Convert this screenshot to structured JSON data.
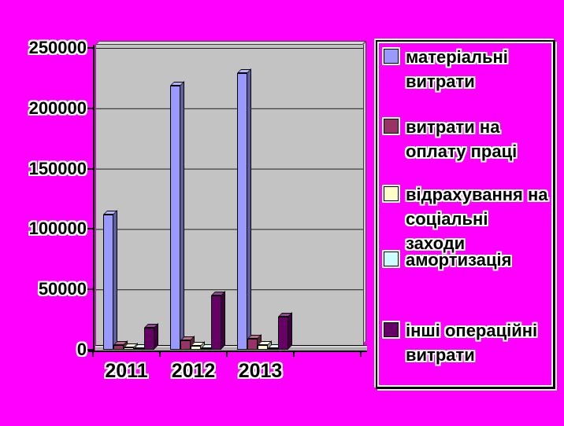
{
  "background_color": "#FF00FF",
  "plot": {
    "wall_color": "#C3C3C3",
    "floor_color": "#ACACAC",
    "grid_color": "#1e1e1e"
  },
  "chart_data": {
    "type": "bar",
    "subtype": "3d-clustered-column",
    "title": "",
    "xlabel": "",
    "ylabel": "",
    "categories": [
      "2011",
      "2012",
      "2013"
    ],
    "series": [
      {
        "name": "матеріальні витрати",
        "color": "#9999FF",
        "values": [
          112000,
          219000,
          229000
        ]
      },
      {
        "name": "витрати на оплату праці",
        "color": "#993366",
        "values": [
          4000,
          8000,
          9000
        ]
      },
      {
        "name": "відрахування на соціальні заходи",
        "color": "#FFFFCC",
        "values": [
          2000,
          3300,
          3800
        ]
      },
      {
        "name": "амортизація",
        "color": "#CCFFFF",
        "values": [
          800,
          1200,
          1300
        ]
      },
      {
        "name": "інші операційні витрати",
        "color": "#660066",
        "values": [
          18000,
          45000,
          27500
        ]
      }
    ],
    "ylim": [
      0,
      250000
    ],
    "ytick_interval": 50000,
    "yticks": [
      "250000",
      "200000",
      "150000",
      "100000",
      "50000",
      "0"
    ],
    "grid": true,
    "legend_position": "right",
    "plot_bg": "#C3C3C3"
  }
}
